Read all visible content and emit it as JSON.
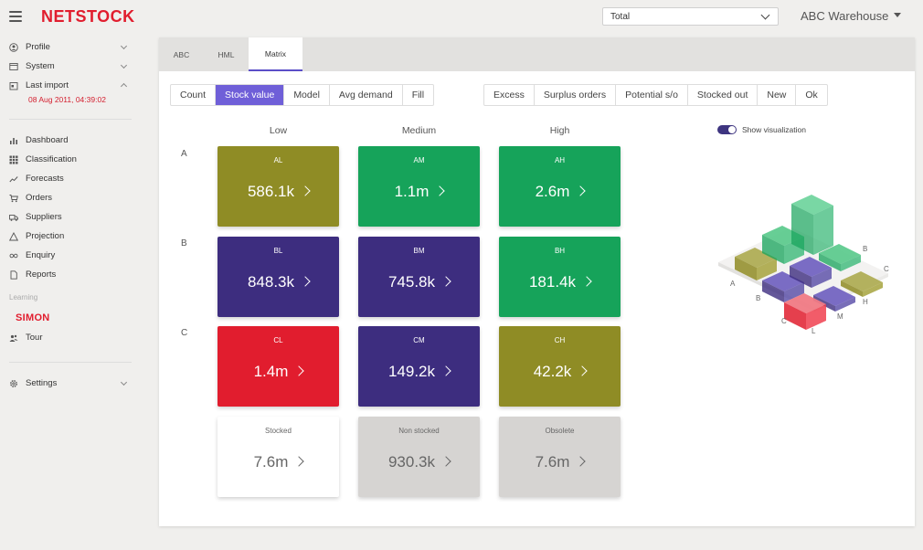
{
  "brand": {
    "logo": "NETSTOCK"
  },
  "header": {
    "select_value": "Total",
    "warehouse": "ABC Warehouse"
  },
  "sidebar": {
    "top_items": [
      {
        "label": "Profile",
        "icon": "profile-icon"
      },
      {
        "label": "System",
        "icon": "system-icon"
      },
      {
        "label": "Last import",
        "icon": "calendar-icon"
      }
    ],
    "last_import_time": "08 Aug 2011, 04:39:02",
    "nav_items": [
      {
        "label": "Dashboard",
        "icon": "bar-chart-icon"
      },
      {
        "label": "Classification",
        "icon": "grid-icon"
      },
      {
        "label": "Forecasts",
        "icon": "trend-icon"
      },
      {
        "label": "Orders",
        "icon": "cart-icon"
      },
      {
        "label": "Suppliers",
        "icon": "truck-icon"
      },
      {
        "label": "Projection",
        "icon": "triangle-icon"
      },
      {
        "label": "Enquiry",
        "icon": "infinity-icon"
      },
      {
        "label": "Reports",
        "icon": "document-icon"
      }
    ],
    "learning_label": "Learning",
    "simon_label": "SIMON",
    "tour_label": "Tour",
    "settings_label": "Settings"
  },
  "tabs": [
    {
      "label": "ABC",
      "active": false
    },
    {
      "label": "HML",
      "active": false
    },
    {
      "label": "Matrix",
      "active": true
    }
  ],
  "measure_buttons": [
    "Count",
    "Stock value",
    "Model",
    "Avg demand",
    "Fill"
  ],
  "measure_active": "Stock value",
  "filter_buttons": [
    "Excess",
    "Surplus orders",
    "Potential s/o",
    "Stocked out",
    "New",
    "Ok"
  ],
  "matrix": {
    "columns": [
      "Low",
      "Medium",
      "High"
    ],
    "rows": [
      "A",
      "B",
      "C"
    ],
    "cells": [
      [
        {
          "code": "AL",
          "value": "586.1k",
          "color": "#8f8c25"
        },
        {
          "code": "AM",
          "value": "1.1m",
          "color": "#16a35a"
        },
        {
          "code": "AH",
          "value": "2.6m",
          "color": "#16a35a"
        }
      ],
      [
        {
          "code": "BL",
          "value": "848.3k",
          "color": "#3d2d7f"
        },
        {
          "code": "BM",
          "value": "745.8k",
          "color": "#3d2d7f"
        },
        {
          "code": "BH",
          "value": "181.4k",
          "color": "#16a35a"
        }
      ],
      [
        {
          "code": "CL",
          "value": "1.4m",
          "color": "#e11d2e"
        },
        {
          "code": "CM",
          "value": "149.2k",
          "color": "#3d2d7f"
        },
        {
          "code": "CH",
          "value": "42.2k",
          "color": "#8f8c25"
        }
      ]
    ],
    "summary": [
      {
        "code": "Stocked",
        "value": "7.6m",
        "color": "#ffffff"
      },
      {
        "code": "Non stocked",
        "value": "930.3k",
        "color": "#d6d4d2"
      },
      {
        "code": "Obsolete",
        "value": "7.6m",
        "color": "#d6d4d2"
      }
    ]
  },
  "visualization": {
    "toggle_label": "Show visualization",
    "enabled": true,
    "axis_rows": [
      "A",
      "B",
      "C"
    ],
    "axis_cols": [
      "L",
      "M",
      "H"
    ],
    "axis_right_cols": [
      "B",
      "C"
    ]
  }
}
